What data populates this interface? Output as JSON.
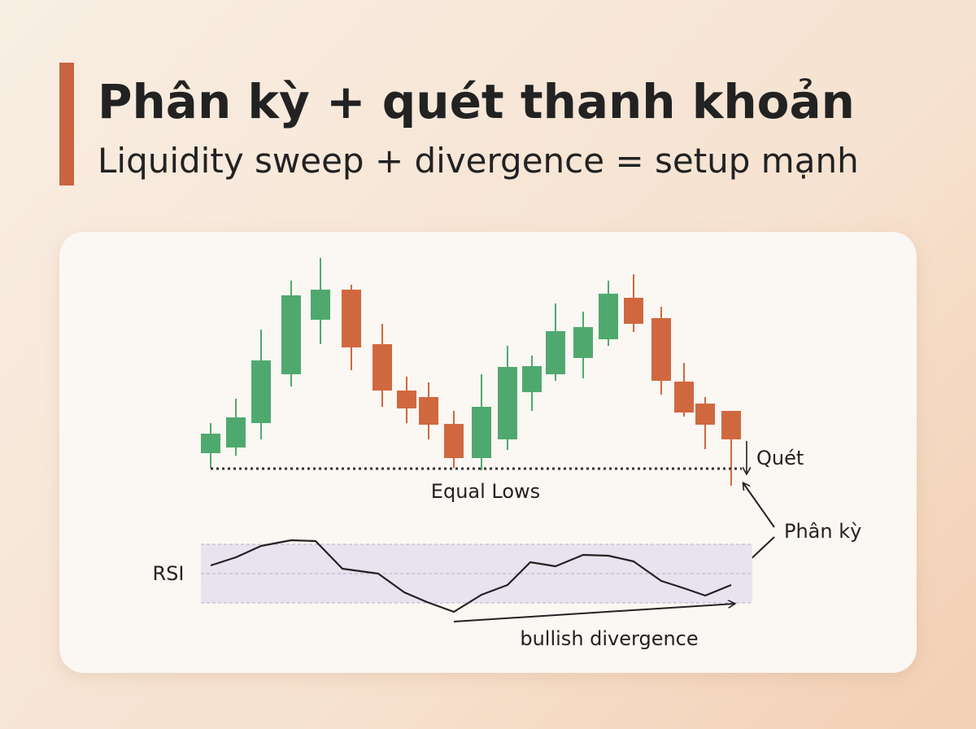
{
  "header": {
    "title": "Phân kỳ + quét thanh khoản",
    "subtitle": "Liquidity sweep + divergence = setup mạnh"
  },
  "labels": {
    "sweep": "Quét",
    "equal_lows": "Equal Lows",
    "divergence": "Phân kỳ",
    "rsi": "RSI",
    "bullish": "bullish divergence"
  }
}
